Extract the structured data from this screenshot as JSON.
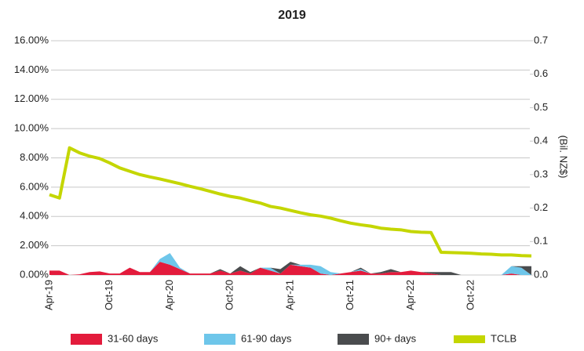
{
  "chart_data": {
    "type": "area",
    "title": "2019",
    "y2label": "(Bil. NZ$)",
    "categories": [
      "Apr-19",
      null,
      null,
      null,
      null,
      null,
      "Oct-19",
      null,
      null,
      null,
      null,
      null,
      "Apr-20",
      null,
      null,
      null,
      null,
      null,
      "Oct-20",
      null,
      null,
      null,
      null,
      null,
      "Apr-21",
      null,
      null,
      null,
      null,
      null,
      "Oct-21",
      null,
      null,
      null,
      null,
      null,
      "Apr-22",
      null,
      null,
      null,
      null,
      null,
      "Oct-22",
      null,
      null,
      null,
      null,
      null,
      null
    ],
    "series": [
      {
        "name": "31-60 days",
        "color": "#e31b3c",
        "values": [
          0.3,
          0.3,
          0,
          0.05,
          0.2,
          0.25,
          0.1,
          0.1,
          0.5,
          0.2,
          0.2,
          0.9,
          0.7,
          0.4,
          0.1,
          0.1,
          0.1,
          0.3,
          0.1,
          0.3,
          0.1,
          0.5,
          0.3,
          0.1,
          0.7,
          0.6,
          0.5,
          0.1,
          0,
          0.1,
          0.2,
          0.3,
          0.1,
          0.1,
          0.2,
          0.2,
          0.3,
          0.2,
          0.1,
          0,
          0,
          0,
          0,
          0,
          0,
          0,
          0.1,
          0,
          0
        ]
      },
      {
        "name": "61-90 days",
        "color": "#6ec6ea",
        "values": [
          0,
          0,
          0,
          0,
          0,
          0,
          0,
          0,
          0,
          0,
          0,
          0.2,
          0.8,
          0.1,
          0,
          0,
          0,
          0,
          0,
          0,
          0,
          0,
          0.2,
          0,
          0,
          0.1,
          0.2,
          0.5,
          0.2,
          0,
          0,
          0.1,
          0,
          0,
          0,
          0,
          0,
          0,
          0,
          0,
          0,
          0,
          0,
          0,
          0,
          0,
          0.5,
          0.5,
          0
        ]
      },
      {
        "name": "90+ days",
        "color": "#4a4c4e",
        "values": [
          0,
          0,
          0,
          0,
          0,
          0,
          0,
          0,
          0,
          0,
          0,
          0,
          0,
          0,
          0,
          0,
          0,
          0.1,
          0,
          0.3,
          0.1,
          0,
          0,
          0.3,
          0.2,
          0,
          0,
          0,
          0,
          0,
          0,
          0.1,
          0,
          0.1,
          0.2,
          0,
          0,
          0,
          0.1,
          0.2,
          0.2,
          0,
          0,
          0,
          0,
          0,
          0,
          0.1,
          0.6
        ]
      },
      {
        "name": "TCLB",
        "color": "#c4d600",
        "type": "line",
        "axis": "y2",
        "values": [
          0.24,
          0.23,
          0.38,
          0.365,
          0.355,
          0.348,
          0.335,
          0.32,
          0.31,
          0.3,
          0.293,
          0.287,
          0.28,
          0.273,
          0.265,
          0.258,
          0.25,
          0.242,
          0.235,
          0.23,
          0.222,
          0.215,
          0.205,
          0.2,
          0.193,
          0.186,
          0.18,
          0.176,
          0.17,
          0.162,
          0.155,
          0.15,
          0.146,
          0.14,
          0.137,
          0.135,
          0.13,
          0.128,
          0.127,
          0.068,
          0.067,
          0.066,
          0.065,
          0.063,
          0.062,
          0.06,
          0.06,
          0.058,
          0.057
        ]
      }
    ],
    "ylim": [
      0,
      16
    ],
    "yticks": [
      {
        "value": 0,
        "label": "0.00%"
      },
      {
        "value": 2,
        "label": "2.00%"
      },
      {
        "value": 4,
        "label": "4.00%"
      },
      {
        "value": 6,
        "label": "6.00%"
      },
      {
        "value": 8,
        "label": "8.00%"
      },
      {
        "value": 10,
        "label": "10.00%"
      },
      {
        "value": 12,
        "label": "12.00%"
      },
      {
        "value": 14,
        "label": "14.00%"
      },
      {
        "value": 16,
        "label": "16.00%"
      }
    ],
    "y2lim": [
      0,
      0.7
    ],
    "y2ticks": [
      {
        "value": 0,
        "label": "0.0"
      },
      0.1,
      0.2,
      0.3,
      0.4,
      0.5,
      0.6,
      0.7
    ],
    "grid": true,
    "legend": "bottom"
  }
}
